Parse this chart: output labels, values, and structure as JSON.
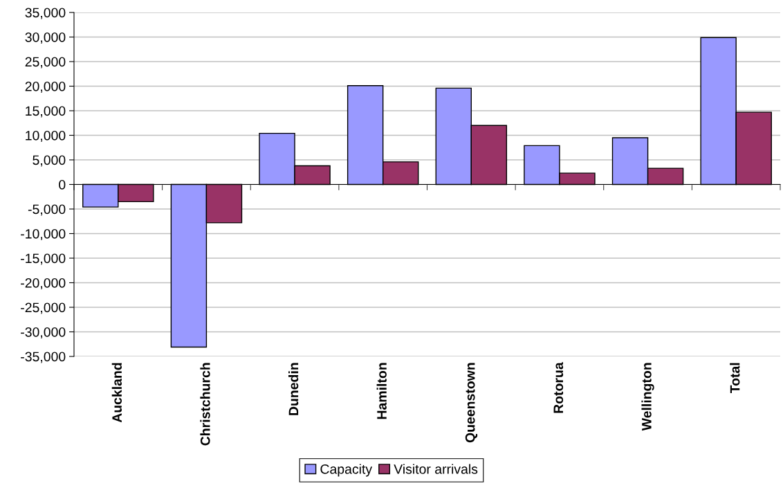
{
  "chart_data": {
    "type": "bar",
    "categories": [
      "Auckland",
      "Christchurch",
      "Dunedin",
      "Hamilton",
      "Queenstown",
      "Rotorua",
      "Wellington",
      "Total"
    ],
    "series": [
      {
        "name": "Capacity",
        "color": "#9999ff",
        "values": [
          -4600,
          -33100,
          10400,
          20100,
          19600,
          7900,
          9500,
          29900
        ]
      },
      {
        "name": "Visitor arrivals",
        "color": "#993366",
        "values": [
          -3500,
          -7800,
          3800,
          4600,
          12000,
          2300,
          3300,
          14700
        ]
      }
    ],
    "ylim": [
      -35000,
      35000
    ],
    "yticks": [
      {
        "value": -35000,
        "label": "-35,000"
      },
      {
        "value": -30000,
        "label": "-30,000"
      },
      {
        "value": -25000,
        "label": "-25,000"
      },
      {
        "value": -20000,
        "label": "-20,000"
      },
      {
        "value": -15000,
        "label": "-15,000"
      },
      {
        "value": -10000,
        "label": "-10,000"
      },
      {
        "value": -5000,
        "label": "-5,000"
      },
      0,
      {
        "value": 5000,
        "label": "5,000"
      },
      {
        "value": 10000,
        "label": "10,000"
      },
      {
        "value": 15000,
        "label": "15,000"
      },
      {
        "value": 20000,
        "label": "20,000"
      },
      {
        "value": 25000,
        "label": "25,000"
      },
      {
        "value": 30000,
        "label": "30,000"
      },
      {
        "value": 35000,
        "label": "35,000"
      }
    ],
    "grid": "y",
    "legend": "bottom"
  }
}
